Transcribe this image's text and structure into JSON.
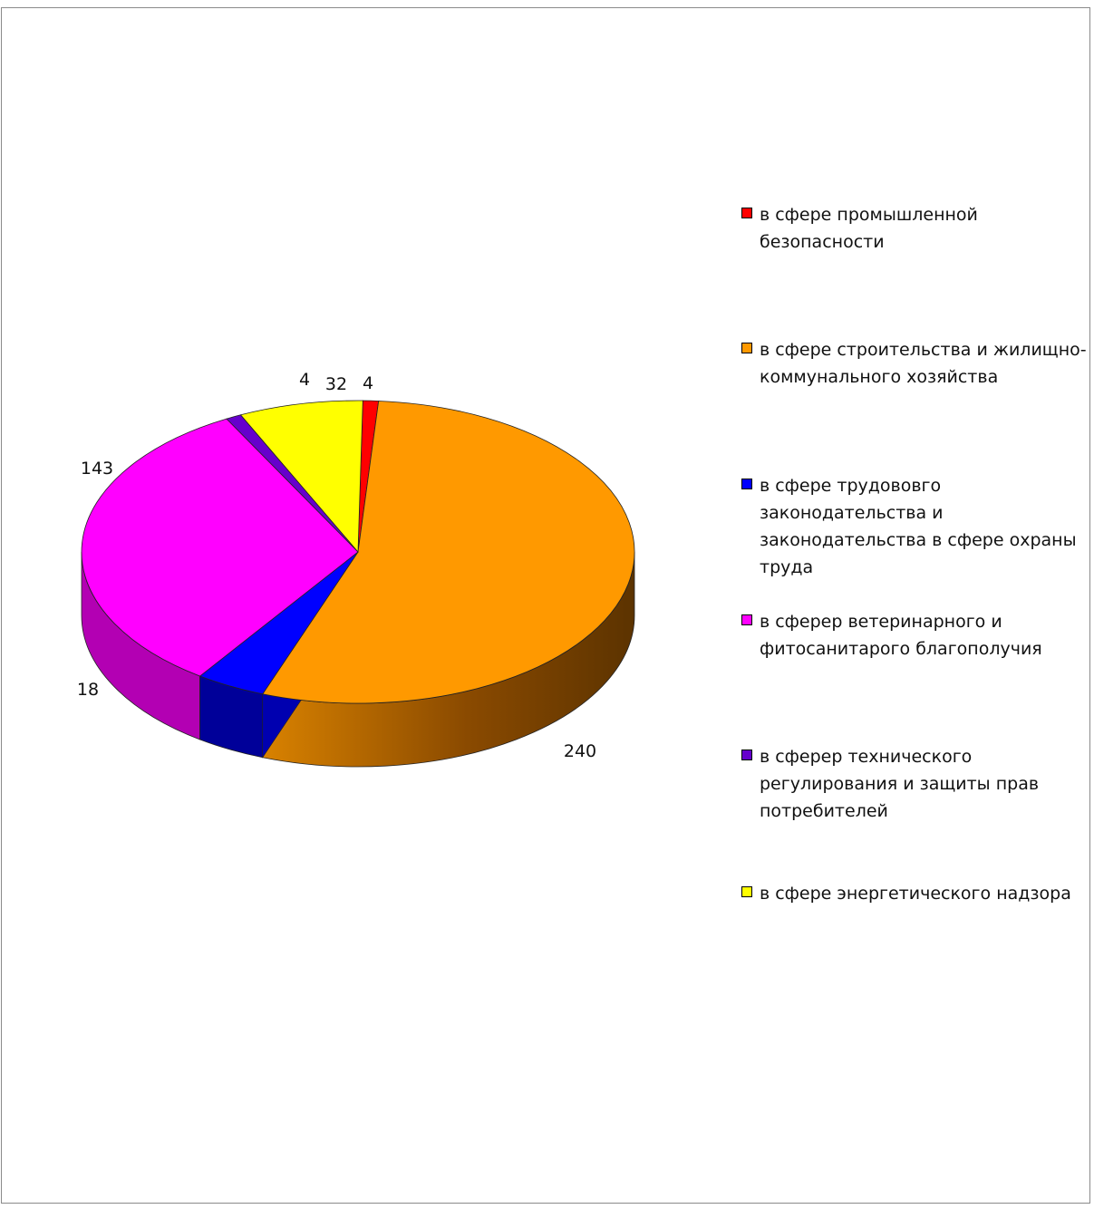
{
  "chart_data": {
    "type": "pie",
    "style": "3d",
    "title": "",
    "series": [
      {
        "label": "в сфере промышленной безопасности",
        "value": 4,
        "color": "#FF0000",
        "shade": "#8B0000"
      },
      {
        "label": "в сфере строительства и жилищно-коммунального хозяйства",
        "value": 240,
        "color": "#FF9900",
        "shade": "#663300"
      },
      {
        "label": "в сфере трудововго законодательства и законодательства  в сфере охраны труда",
        "value": 18,
        "color": "#0000FF",
        "shade": "#000099"
      },
      {
        "label": "в сферер ветеринарного  и фитосанитарого благополучия",
        "value": 143,
        "color": "#FF00FF",
        "shade": "#B300B3"
      },
      {
        "label": "в сферер технического регулирования и защиты прав потребителей",
        "value": 4,
        "color": "#6600CC",
        "shade": "#330066"
      },
      {
        "label": "в сфере энергетического  надзора",
        "value": 32,
        "color": "#FFFF00",
        "shade": "#999900"
      }
    ],
    "data_labels_shown": true,
    "legend_position": "right"
  },
  "legend_lines": [
    "в сфере промышленной\nбезопасности",
    "в сфере строительства и жилищно-\nкоммунального хозяйства",
    "в сфере трудововго\nзаконодательства и\nзаконодательства  в сфере охраны\nтруда",
    "в сферер ветеринарного  и\nфитосанитарого благополучия",
    "в сферер технического\nрегулирования и защиты прав\nпотребителей",
    "в сфере энергетического  надзора"
  ],
  "value_labels": [
    "4",
    "240",
    "18",
    "143",
    "4",
    "32"
  ]
}
